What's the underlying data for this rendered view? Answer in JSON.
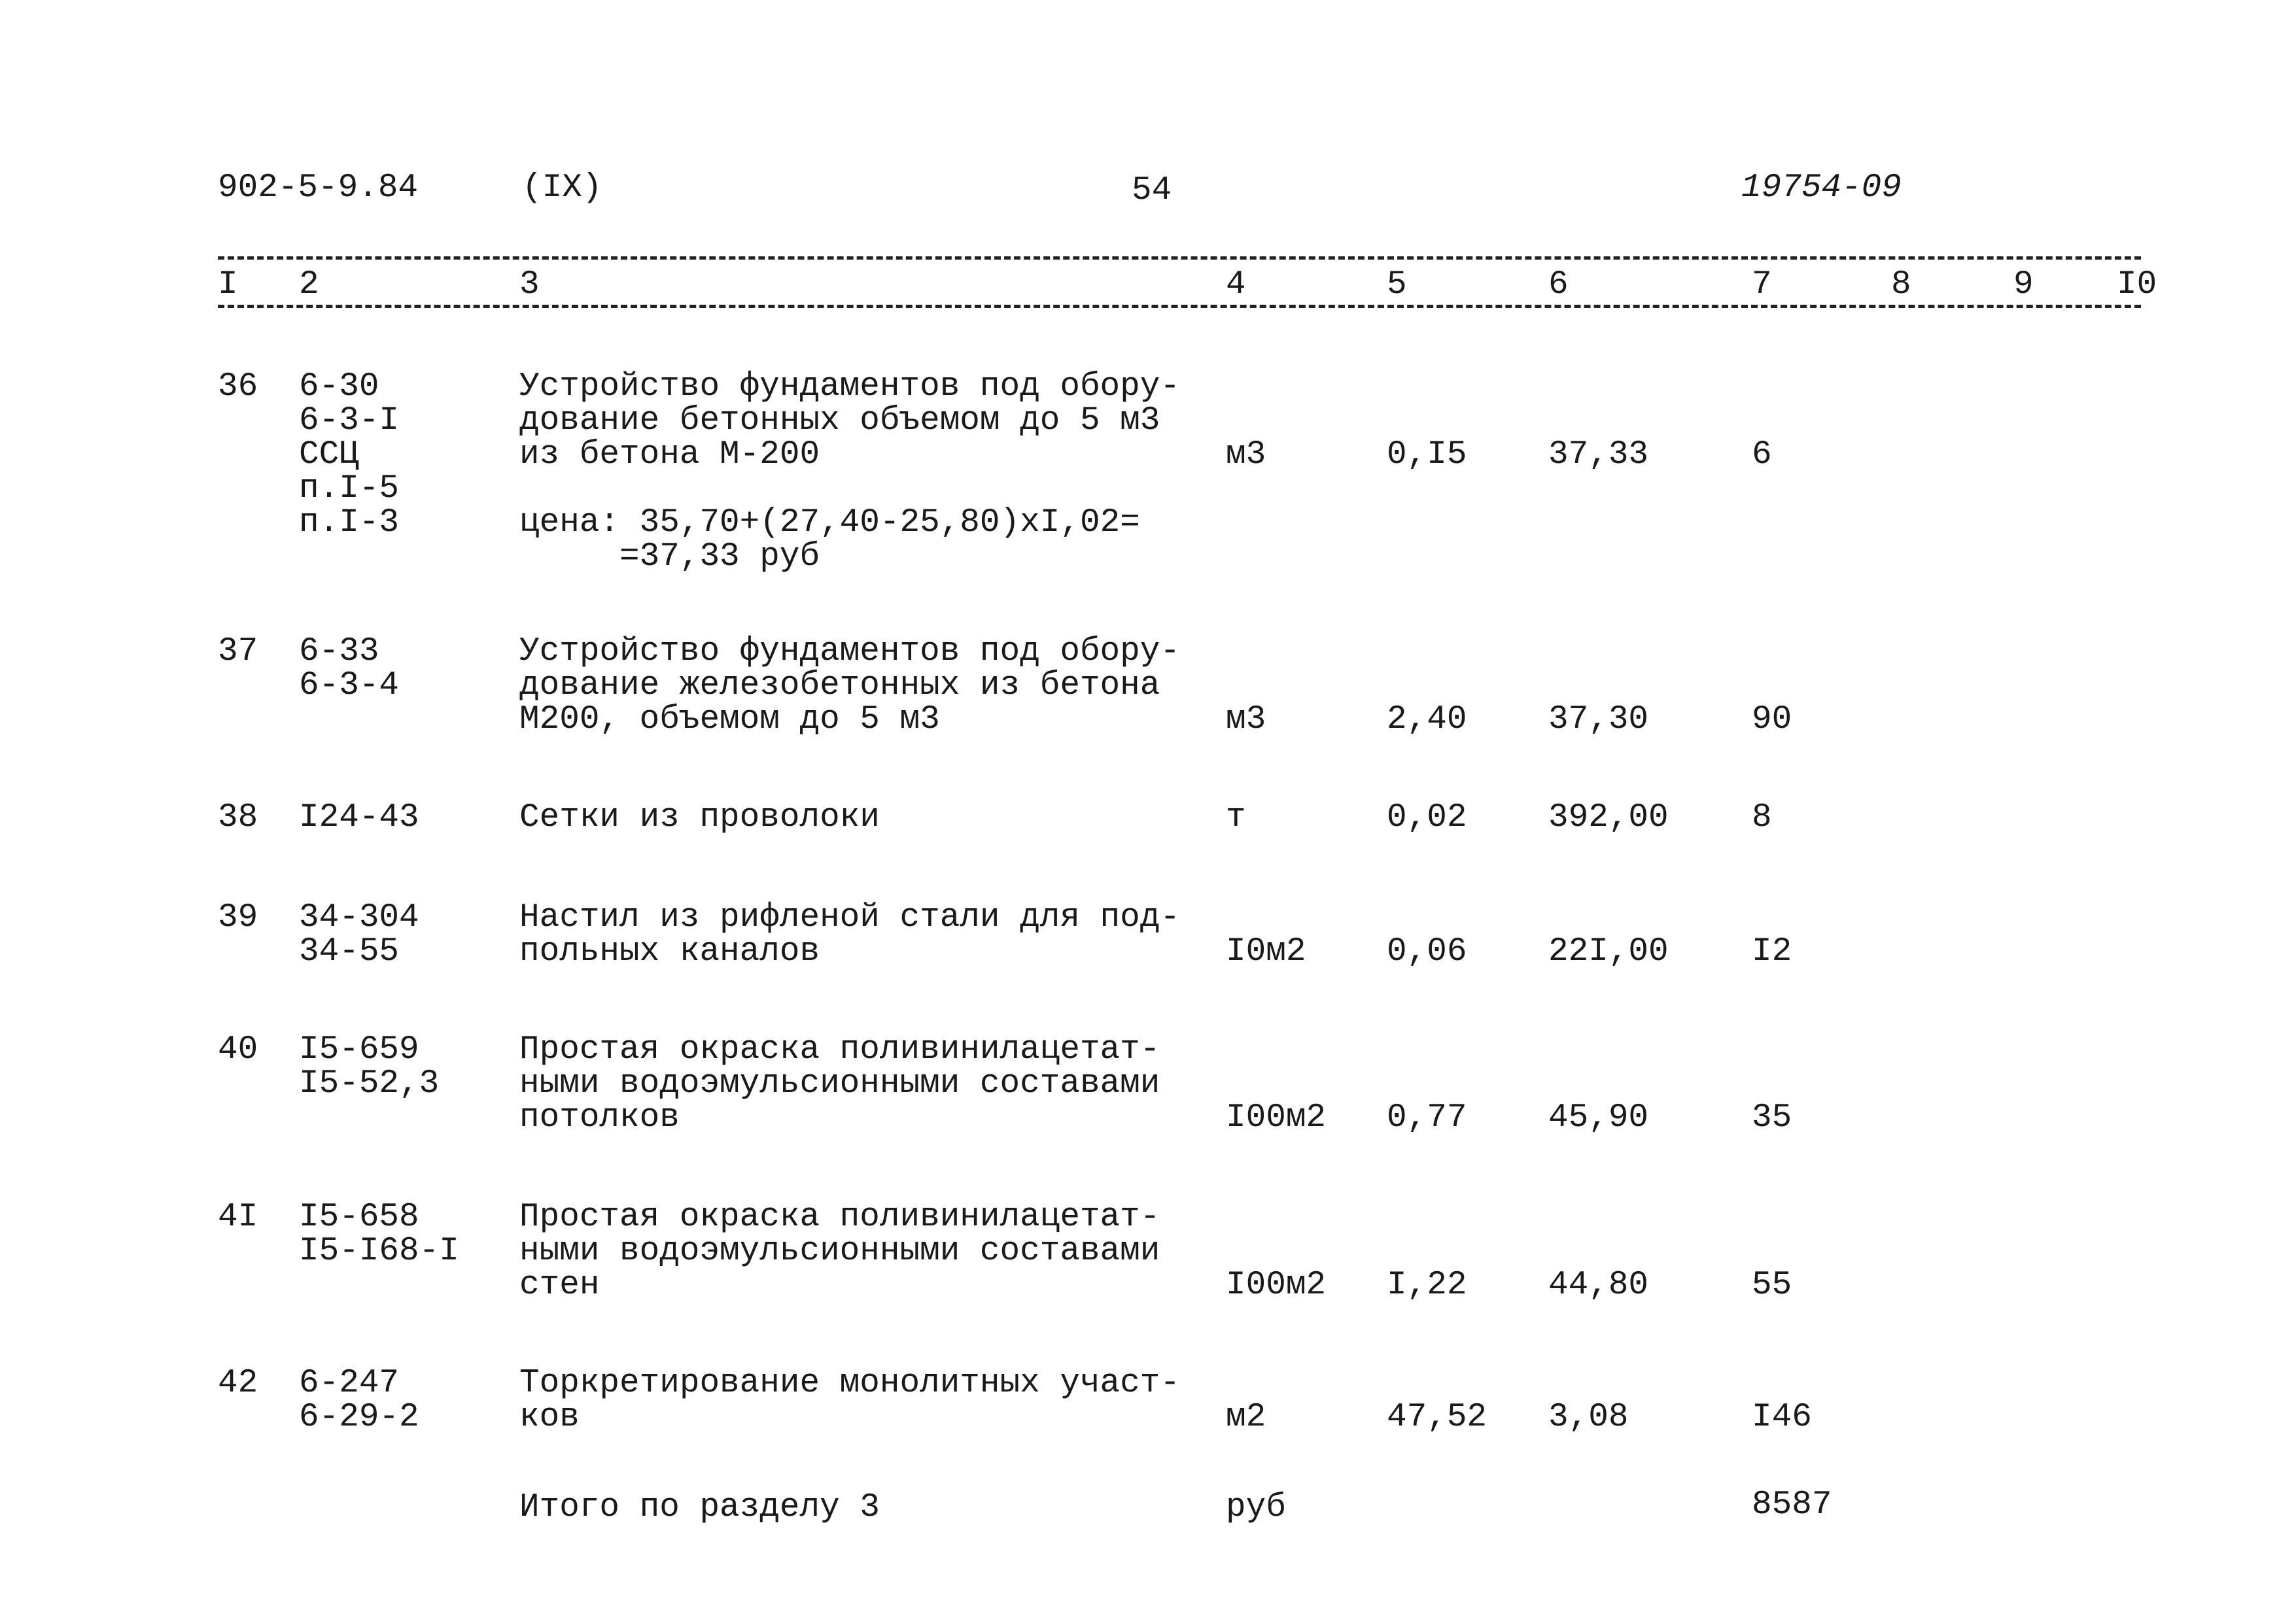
{
  "header": {
    "doc_code": "902-5-9.84",
    "volume": "(IX)",
    "page_number": "54",
    "archive_number": "19754-09"
  },
  "columns": [
    "I",
    "2",
    "3",
    "4",
    "5",
    "6",
    "7",
    "8",
    "9",
    "I0"
  ],
  "rows": [
    {
      "num": "36",
      "codes": [
        "6-30",
        "6-3-I",
        "ССЦ",
        "п.I-5",
        "п.I-3"
      ],
      "desc": [
        "Устройство фундаментов под обору-",
        "дование бетонных объемом до 5 м3",
        "из бетона М-200",
        "",
        "цена: 35,70+(27,40-25,80)xI,02=",
        "     =37,33 руб"
      ],
      "unit": "м3",
      "qty": "0,I5",
      "price": "37,33",
      "total": "6"
    },
    {
      "num": "37",
      "codes": [
        "6-33",
        "6-3-4"
      ],
      "desc": [
        "Устройство фундаментов под обору-",
        "дование железобетонных из бетона",
        "М200, объемом до 5 м3"
      ],
      "unit": "м3",
      "qty": "2,40",
      "price": "37,30",
      "total": "90"
    },
    {
      "num": "38",
      "codes": [
        "I24-43"
      ],
      "desc": [
        "Сетки из проволоки"
      ],
      "unit": "т",
      "qty": "0,02",
      "price": "392,00",
      "total": "8"
    },
    {
      "num": "39",
      "codes": [
        "34-304",
        "34-55"
      ],
      "desc": [
        "Настил из рифленой стали для под-",
        "польных каналов"
      ],
      "unit": "I0м2",
      "qty": "0,06",
      "price": "22I,00",
      "total": "I2"
    },
    {
      "num": "40",
      "codes": [
        "I5-659",
        "I5-52,3"
      ],
      "desc": [
        "Простая окраска поливинилацетат-",
        "ными водоэмульсионными составами",
        "потолков"
      ],
      "unit": "I00м2",
      "qty": "0,77",
      "price": "45,90",
      "total": "35"
    },
    {
      "num": "4I",
      "codes": [
        "I5-658",
        "I5-I68-I"
      ],
      "desc": [
        "Простая окраска поливинилацетат-",
        "ными водоэмульсионными составами",
        "стен"
      ],
      "unit": "I00м2",
      "qty": "I,22",
      "price": "44,80",
      "total": "55"
    },
    {
      "num": "42",
      "codes": [
        "6-247",
        "6-29-2"
      ],
      "desc": [
        "Торкретирование монолитных участ-",
        "ков"
      ],
      "unit": "м2",
      "qty": "47,52",
      "price": "3,08",
      "total": "I46"
    }
  ],
  "summary": {
    "label": "Итого по разделу 3",
    "unit": "руб",
    "total": "8587"
  }
}
